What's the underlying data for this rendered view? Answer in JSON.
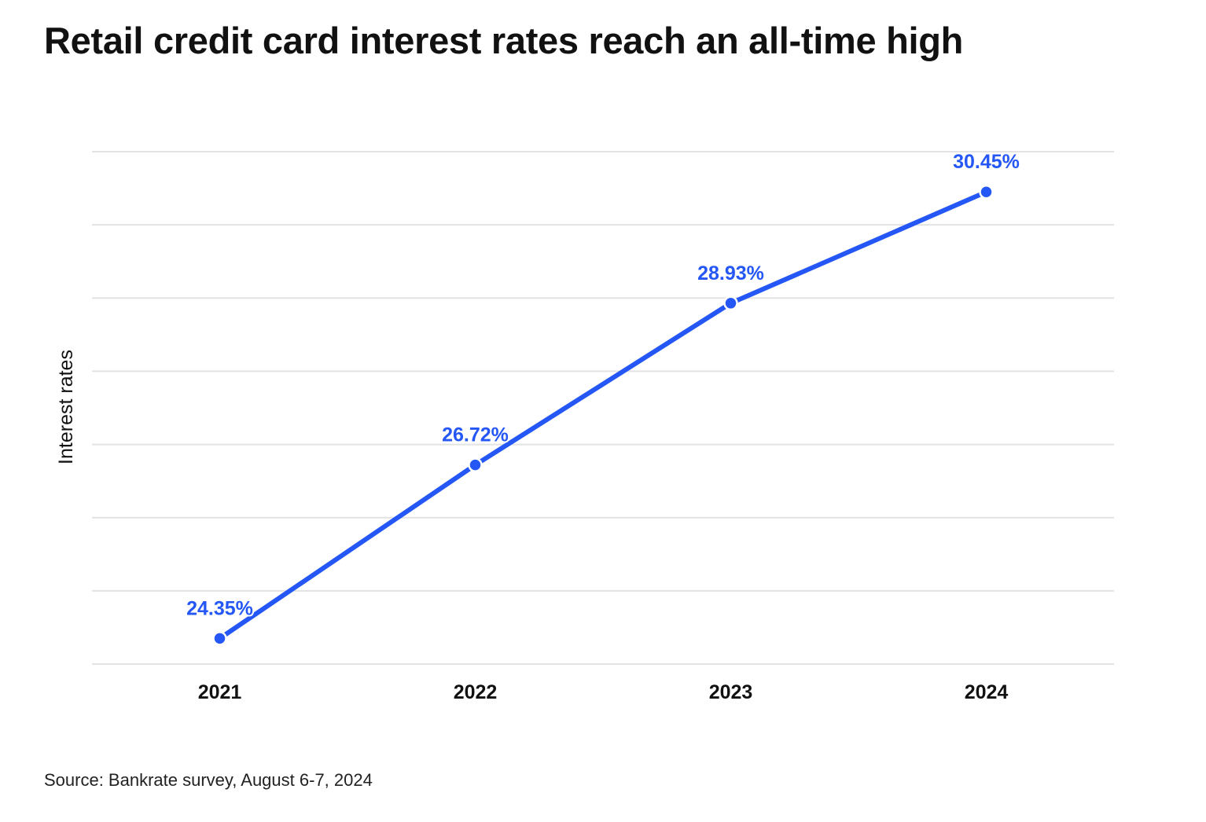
{
  "chart_data": {
    "type": "line",
    "title": "Retail credit card interest rates reach an all-time high",
    "xlabel": "",
    "ylabel": "Interest rates",
    "categories": [
      "2021",
      "2022",
      "2023",
      "2024"
    ],
    "series": [
      {
        "values": [
          24.35,
          26.72,
          28.93,
          30.45
        ],
        "data_labels": [
          "24.35%",
          "26.72%",
          "28.93%",
          "30.45%"
        ]
      }
    ],
    "ylim": [
      24,
      31
    ],
    "grid": true,
    "y_tick_labels_shown": false,
    "line_color": "#2457F5",
    "source": "Source: Bankrate survey, August 6-7, 2024"
  }
}
